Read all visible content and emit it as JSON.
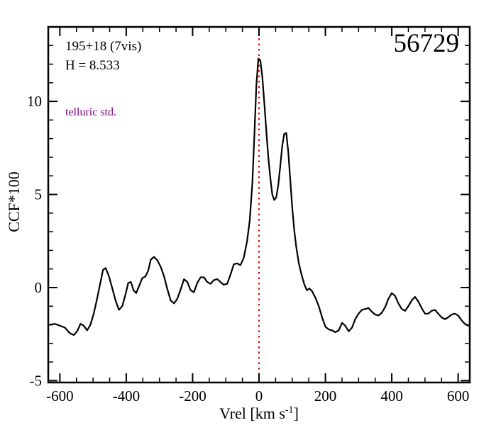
{
  "annotations": {
    "target_id": "195+18 (7vis)",
    "h_magnitude": "H = 8.533",
    "telluric": "telluric std.",
    "mjd": "56729"
  },
  "colors": {
    "curve": "#000000",
    "reference_line": "#e60000",
    "telluric_text": "#800080",
    "frame": "#000000",
    "background": "#ffffff"
  },
  "chart_data": {
    "type": "line",
    "title": "",
    "xlabel": "Vrel [km s⁻¹]",
    "xlabel_parts": {
      "pre": "Vrel [km s",
      "sup": "-1",
      "post": "]"
    },
    "ylabel": "CCF*100",
    "xlim": [
      -635,
      635
    ],
    "ylim": [
      -5.1,
      14.0
    ],
    "grid": false,
    "xticks": [
      -600,
      -400,
      -200,
      0,
      200,
      400,
      600
    ],
    "xtick_labels": [
      "-600",
      "-400",
      "-200",
      "0",
      "200",
      "400",
      "600"
    ],
    "x_minor_interval": 50,
    "yticks": [
      -5,
      0,
      5,
      10
    ],
    "ytick_labels": [
      "-5",
      "0",
      "5",
      "10"
    ],
    "y_minor_interval": 1,
    "reference_line": {
      "x": 0,
      "color": "#e60000",
      "style": "dotted"
    },
    "series": [
      {
        "name": "CCF",
        "color": "#000000",
        "points": [
          [
            -630,
            -2.0
          ],
          [
            -615,
            -1.95
          ],
          [
            -600,
            -2.05
          ],
          [
            -585,
            -2.15
          ],
          [
            -570,
            -2.45
          ],
          [
            -558,
            -2.55
          ],
          [
            -548,
            -2.35
          ],
          [
            -538,
            -1.95
          ],
          [
            -528,
            -2.05
          ],
          [
            -518,
            -2.3
          ],
          [
            -508,
            -2.0
          ],
          [
            -498,
            -1.4
          ],
          [
            -488,
            -0.6
          ],
          [
            -478,
            0.25
          ],
          [
            -470,
            0.95
          ],
          [
            -462,
            1.05
          ],
          [
            -452,
            0.6
          ],
          [
            -442,
            -0.05
          ],
          [
            -432,
            -0.7
          ],
          [
            -422,
            -1.2
          ],
          [
            -412,
            -1.0
          ],
          [
            -402,
            -0.35
          ],
          [
            -394,
            0.25
          ],
          [
            -386,
            0.3
          ],
          [
            -378,
            -0.15
          ],
          [
            -370,
            -0.3
          ],
          [
            -362,
            0.05
          ],
          [
            -352,
            0.5
          ],
          [
            -342,
            0.6
          ],
          [
            -334,
            0.9
          ],
          [
            -326,
            1.5
          ],
          [
            -316,
            1.65
          ],
          [
            -306,
            1.45
          ],
          [
            -296,
            1.1
          ],
          [
            -286,
            0.6
          ],
          [
            -276,
            -0.1
          ],
          [
            -266,
            -0.7
          ],
          [
            -256,
            -0.85
          ],
          [
            -246,
            -0.6
          ],
          [
            -236,
            -0.1
          ],
          [
            -226,
            0.45
          ],
          [
            -216,
            0.3
          ],
          [
            -206,
            -0.15
          ],
          [
            -196,
            -0.25
          ],
          [
            -186,
            0.25
          ],
          [
            -176,
            0.55
          ],
          [
            -166,
            0.55
          ],
          [
            -156,
            0.3
          ],
          [
            -146,
            0.2
          ],
          [
            -136,
            0.4
          ],
          [
            -126,
            0.45
          ],
          [
            -116,
            0.3
          ],
          [
            -106,
            0.15
          ],
          [
            -96,
            0.2
          ],
          [
            -86,
            0.7
          ],
          [
            -76,
            1.25
          ],
          [
            -66,
            1.3
          ],
          [
            -56,
            1.2
          ],
          [
            -46,
            1.6
          ],
          [
            -36,
            2.5
          ],
          [
            -28,
            3.6
          ],
          [
            -20,
            5.6
          ],
          [
            -14,
            8.2
          ],
          [
            -8,
            10.9
          ],
          [
            -2,
            12.3
          ],
          [
            4,
            12.2
          ],
          [
            10,
            11.3
          ],
          [
            16,
            9.9
          ],
          [
            22,
            8.4
          ],
          [
            28,
            7.0
          ],
          [
            34,
            5.9
          ],
          [
            40,
            5.0
          ],
          [
            46,
            4.7
          ],
          [
            52,
            4.85
          ],
          [
            58,
            5.5
          ],
          [
            64,
            6.5
          ],
          [
            70,
            7.6
          ],
          [
            76,
            8.25
          ],
          [
            82,
            8.3
          ],
          [
            88,
            7.3
          ],
          [
            94,
            5.8
          ],
          [
            100,
            4.3
          ],
          [
            106,
            3.1
          ],
          [
            112,
            2.2
          ],
          [
            120,
            1.3
          ],
          [
            128,
            0.7
          ],
          [
            136,
            0.2
          ],
          [
            144,
            -0.15
          ],
          [
            152,
            -0.05
          ],
          [
            160,
            -0.2
          ],
          [
            170,
            -0.55
          ],
          [
            180,
            -1.0
          ],
          [
            190,
            -1.6
          ],
          [
            200,
            -2.1
          ],
          [
            210,
            -2.25
          ],
          [
            220,
            -2.3
          ],
          [
            230,
            -2.4
          ],
          [
            240,
            -2.3
          ],
          [
            250,
            -1.9
          ],
          [
            260,
            -2.05
          ],
          [
            270,
            -2.35
          ],
          [
            280,
            -2.15
          ],
          [
            290,
            -1.7
          ],
          [
            300,
            -1.4
          ],
          [
            310,
            -1.2
          ],
          [
            320,
            -1.15
          ],
          [
            330,
            -1.1
          ],
          [
            340,
            -1.3
          ],
          [
            350,
            -1.45
          ],
          [
            360,
            -1.5
          ],
          [
            370,
            -1.35
          ],
          [
            380,
            -1.05
          ],
          [
            390,
            -0.6
          ],
          [
            400,
            -0.3
          ],
          [
            410,
            -0.45
          ],
          [
            420,
            -0.85
          ],
          [
            430,
            -1.15
          ],
          [
            440,
            -1.25
          ],
          [
            450,
            -1.0
          ],
          [
            460,
            -0.7
          ],
          [
            470,
            -0.5
          ],
          [
            480,
            -0.75
          ],
          [
            490,
            -1.1
          ],
          [
            500,
            -1.4
          ],
          [
            510,
            -1.4
          ],
          [
            520,
            -1.25
          ],
          [
            530,
            -1.2
          ],
          [
            540,
            -1.4
          ],
          [
            550,
            -1.6
          ],
          [
            560,
            -1.7
          ],
          [
            570,
            -1.6
          ],
          [
            580,
            -1.45
          ],
          [
            590,
            -1.4
          ],
          [
            600,
            -1.5
          ],
          [
            610,
            -1.75
          ],
          [
            620,
            -1.95
          ],
          [
            630,
            -2.05
          ]
        ]
      }
    ]
  }
}
